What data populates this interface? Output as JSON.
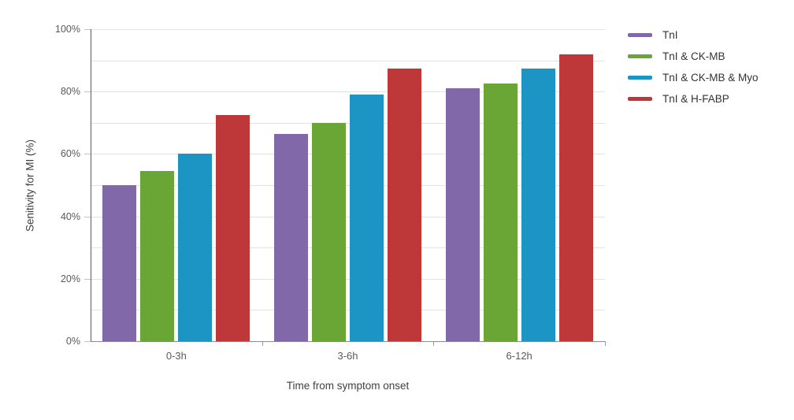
{
  "chart_data": {
    "type": "bar",
    "categories": [
      "0-3h",
      "3-6h",
      "6-12h"
    ],
    "series": [
      {
        "name": "TnI",
        "color": "#8168A8",
        "values": [
          50,
          66.5,
          81
        ]
      },
      {
        "name": "TnI & CK-MB",
        "color": "#69A636",
        "values": [
          54.5,
          70,
          82.5
        ]
      },
      {
        "name": "TnI & CK-MB & Myo",
        "color": "#1C95C5",
        "values": [
          60,
          79,
          87.5
        ]
      },
      {
        "name": "TnI & H-FABP",
        "color": "#BE383A",
        "values": [
          72.5,
          87.5,
          92
        ]
      }
    ],
    "title": "",
    "xlabel": "Time from symptom onset",
    "ylabel": "Senitivity for MI (%)",
    "ylim": [
      0,
      100
    ],
    "grid_interval": 10,
    "label_interval": 20,
    "ytick_labels": [
      "0%",
      "20%",
      "40%",
      "60%",
      "80%",
      "100%"
    ],
    "grid": true,
    "legend_position": "right"
  },
  "colors": {
    "background": "#ffffff",
    "gridline": "#e3e3e3",
    "yaxis_line": "#5a5a5a",
    "xaxis_line": "#8c8c8c",
    "tick_text": "#595959",
    "axis_title_text": "#404040",
    "legend_text": "#333333"
  }
}
